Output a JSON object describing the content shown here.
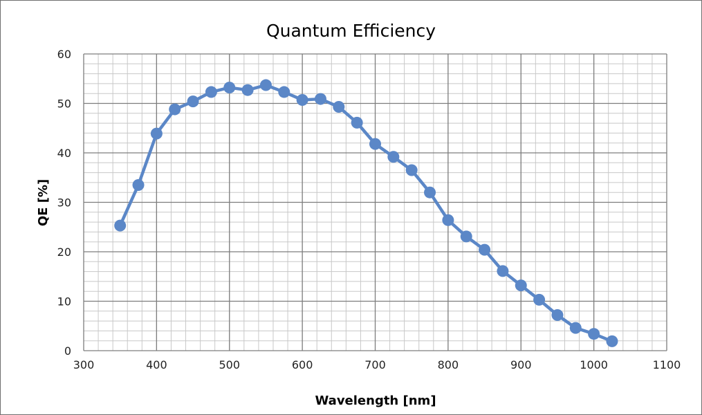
{
  "chart_data": {
    "type": "line",
    "title": "Quantum Efficiency",
    "xlabel": "Wavelength [nm]",
    "ylabel": "QE [%]",
    "xlim": [
      300,
      1100
    ],
    "ylim": [
      0,
      60
    ],
    "x_ticks": [
      300,
      400,
      500,
      600,
      700,
      800,
      900,
      1000,
      1100
    ],
    "y_ticks": [
      0,
      10,
      20,
      30,
      40,
      50,
      60
    ],
    "x_minor_step": 20,
    "y_minor_step": 2,
    "grid": true,
    "legend": "none",
    "color": "#5b87c7",
    "series": [
      {
        "x": [
          350,
          375,
          400,
          425,
          450,
          475,
          500,
          525,
          550,
          575,
          600,
          625,
          650,
          675,
          700,
          725,
          750,
          775,
          800,
          825,
          850,
          875,
          900,
          925,
          950,
          975,
          1000,
          1025
        ],
        "y": [
          25.3,
          33.5,
          43.9,
          48.8,
          50.4,
          52.3,
          53.2,
          52.7,
          53.7,
          52.3,
          50.7,
          50.9,
          49.3,
          46.1,
          41.8,
          39.2,
          36.5,
          32.0,
          26.4,
          23.1,
          20.4,
          16.1,
          13.2,
          10.3,
          7.2,
          4.6,
          3.4,
          1.9
        ]
      }
    ]
  }
}
